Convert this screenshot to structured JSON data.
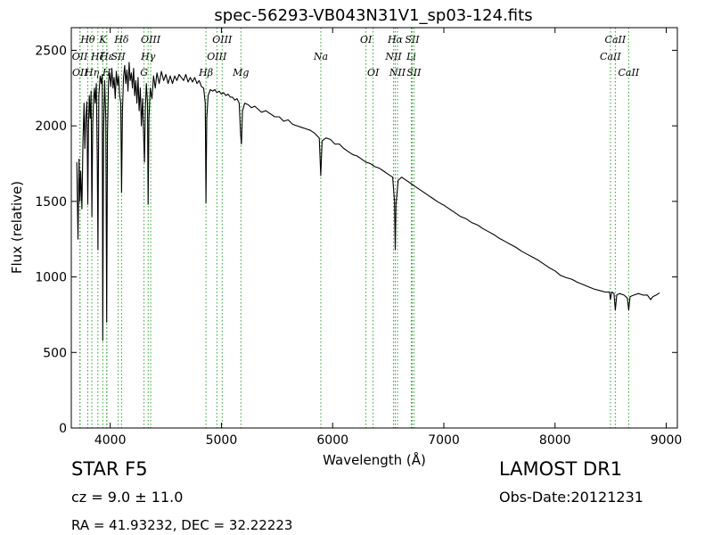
{
  "chart_data": {
    "type": "line",
    "title": "spec-56293-VB043N31V1_sp03-124.fits",
    "xlabel": "Wavelength (Å)",
    "ylabel": "Flux (relative)",
    "xlim": [
      3650,
      9100
    ],
    "ylim": [
      0,
      2650
    ],
    "xticks": [
      4000,
      5000,
      6000,
      7000,
      8000,
      9000
    ],
    "yticks": [
      0,
      500,
      1000,
      1500,
      2000,
      2500
    ],
    "grid": false,
    "line_color": "#000000",
    "marker_color": "#2ca02c",
    "spectrum": {
      "name": "",
      "points": [
        [
          3700,
          1760
        ],
        [
          3710,
          1250
        ],
        [
          3720,
          1780
        ],
        [
          3728,
          1500
        ],
        [
          3735,
          1700
        ],
        [
          3745,
          1450
        ],
        [
          3755,
          1900
        ],
        [
          3765,
          2150
        ],
        [
          3772,
          1850
        ],
        [
          3780,
          2050
        ],
        [
          3790,
          2160
        ],
        [
          3798,
          1480
        ],
        [
          3805,
          2000
        ],
        [
          3812,
          2200
        ],
        [
          3820,
          2050
        ],
        [
          3828,
          2230
        ],
        [
          3835,
          1400
        ],
        [
          3842,
          2000
        ],
        [
          3850,
          2180
        ],
        [
          3858,
          2250
        ],
        [
          3865,
          2150
        ],
        [
          3875,
          2280
        ],
        [
          3883,
          1800
        ],
        [
          3890,
          1180
        ],
        [
          3898,
          2200
        ],
        [
          3910,
          2330
        ],
        [
          3920,
          2280
        ],
        [
          3928,
          2340
        ],
        [
          3933,
          580
        ],
        [
          3940,
          1950
        ],
        [
          3950,
          2300
        ],
        [
          3960,
          2050
        ],
        [
          3968,
          700
        ],
        [
          3975,
          1950
        ],
        [
          3985,
          2300
        ],
        [
          3995,
          2350
        ],
        [
          4005,
          2260
        ],
        [
          4015,
          2380
        ],
        [
          4025,
          2250
        ],
        [
          4035,
          2320
        ],
        [
          4045,
          2180
        ],
        [
          4055,
          2360
        ],
        [
          4065,
          2270
        ],
        [
          4075,
          2330
        ],
        [
          4085,
          2200
        ],
        [
          4095,
          2150
        ],
        [
          4102,
          1560
        ],
        [
          4110,
          2100
        ],
        [
          4120,
          2320
        ],
        [
          4130,
          2400
        ],
        [
          4140,
          2280
        ],
        [
          4150,
          2370
        ],
        [
          4160,
          2230
        ],
        [
          4170,
          2420
        ],
        [
          4180,
          2300
        ],
        [
          4190,
          2350
        ],
        [
          4200,
          2250
        ],
        [
          4210,
          2380
        ],
        [
          4220,
          2200
        ],
        [
          4230,
          2300
        ],
        [
          4240,
          2150
        ],
        [
          4250,
          2320
        ],
        [
          4260,
          2100
        ],
        [
          4270,
          2250
        ],
        [
          4280,
          2000
        ],
        [
          4290,
          2180
        ],
        [
          4300,
          1950
        ],
        [
          4308,
          1760
        ],
        [
          4315,
          2100
        ],
        [
          4325,
          2280
        ],
        [
          4335,
          2150
        ],
        [
          4341,
          1480
        ],
        [
          4348,
          2050
        ],
        [
          4360,
          2250
        ],
        [
          4375,
          2180
        ],
        [
          4390,
          2330
        ],
        [
          4405,
          2250
        ],
        [
          4420,
          2350
        ],
        [
          4440,
          2280
        ],
        [
          4460,
          2360
        ],
        [
          4480,
          2300
        ],
        [
          4500,
          2340
        ],
        [
          4520,
          2280
        ],
        [
          4540,
          2330
        ],
        [
          4560,
          2280
        ],
        [
          4580,
          2330
        ],
        [
          4600,
          2300
        ],
        [
          4620,
          2340
        ],
        [
          4640,
          2320
        ],
        [
          4660,
          2300
        ],
        [
          4680,
          2340
        ],
        [
          4700,
          2290
        ],
        [
          4720,
          2320
        ],
        [
          4740,
          2290
        ],
        [
          4760,
          2320
        ],
        [
          4780,
          2280
        ],
        [
          4800,
          2300
        ],
        [
          4820,
          2260
        ],
        [
          4840,
          2250
        ],
        [
          4855,
          2150
        ],
        [
          4861,
          1490
        ],
        [
          4868,
          2050
        ],
        [
          4880,
          2200
        ],
        [
          4900,
          2240
        ],
        [
          4920,
          2230
        ],
        [
          4940,
          2240
        ],
        [
          4960,
          2220
        ],
        [
          4980,
          2230
        ],
        [
          5000,
          2210
        ],
        [
          5020,
          2220
        ],
        [
          5040,
          2200
        ],
        [
          5060,
          2210
        ],
        [
          5080,
          2190
        ],
        [
          5100,
          2190
        ],
        [
          5120,
          2170
        ],
        [
          5140,
          2180
        ],
        [
          5160,
          2150
        ],
        [
          5172,
          1950
        ],
        [
          5180,
          1880
        ],
        [
          5190,
          2100
        ],
        [
          5210,
          2150
        ],
        [
          5240,
          2140
        ],
        [
          5270,
          2120
        ],
        [
          5300,
          2130
        ],
        [
          5330,
          2110
        ],
        [
          5360,
          2090
        ],
        [
          5400,
          2100
        ],
        [
          5440,
          2080
        ],
        [
          5480,
          2060
        ],
        [
          5520,
          2060
        ],
        [
          5560,
          2030
        ],
        [
          5600,
          2040
        ],
        [
          5640,
          2010
        ],
        [
          5680,
          2000
        ],
        [
          5720,
          1990
        ],
        [
          5760,
          1980
        ],
        [
          5800,
          1970
        ],
        [
          5840,
          1950
        ],
        [
          5880,
          1920
        ],
        [
          5893,
          1670
        ],
        [
          5905,
          1900
        ],
        [
          5940,
          1920
        ],
        [
          5980,
          1910
        ],
        [
          6020,
          1880
        ],
        [
          6060,
          1880
        ],
        [
          6100,
          1850
        ],
        [
          6140,
          1830
        ],
        [
          6180,
          1810
        ],
        [
          6220,
          1800
        ],
        [
          6260,
          1780
        ],
        [
          6300,
          1760
        ],
        [
          6340,
          1750
        ],
        [
          6380,
          1730
        ],
        [
          6420,
          1720
        ],
        [
          6460,
          1700
        ],
        [
          6500,
          1680
        ],
        [
          6540,
          1660
        ],
        [
          6556,
          1500
        ],
        [
          6563,
          1180
        ],
        [
          6570,
          1480
        ],
        [
          6590,
          1640
        ],
        [
          6620,
          1660
        ],
        [
          6660,
          1640
        ],
        [
          6700,
          1620
        ],
        [
          6740,
          1600
        ],
        [
          6780,
          1580
        ],
        [
          6820,
          1560
        ],
        [
          6860,
          1540
        ],
        [
          6900,
          1520
        ],
        [
          6950,
          1495
        ],
        [
          7000,
          1475
        ],
        [
          7050,
          1450
        ],
        [
          7100,
          1425
        ],
        [
          7150,
          1400
        ],
        [
          7200,
          1385
        ],
        [
          7250,
          1360
        ],
        [
          7300,
          1345
        ],
        [
          7350,
          1320
        ],
        [
          7400,
          1300
        ],
        [
          7450,
          1280
        ],
        [
          7500,
          1255
        ],
        [
          7550,
          1235
        ],
        [
          7600,
          1215
        ],
        [
          7650,
          1195
        ],
        [
          7700,
          1170
        ],
        [
          7750,
          1150
        ],
        [
          7800,
          1130
        ],
        [
          7850,
          1110
        ],
        [
          7900,
          1085
        ],
        [
          7950,
          1060
        ],
        [
          8000,
          1040
        ],
        [
          8050,
          1010
        ],
        [
          8100,
          995
        ],
        [
          8150,
          985
        ],
        [
          8200,
          965
        ],
        [
          8250,
          950
        ],
        [
          8300,
          935
        ],
        [
          8350,
          920
        ],
        [
          8400,
          910
        ],
        [
          8450,
          900
        ],
        [
          8490,
          900
        ],
        [
          8498,
          850
        ],
        [
          8510,
          900
        ],
        [
          8530,
          890
        ],
        [
          8542,
          780
        ],
        [
          8555,
          880
        ],
        [
          8580,
          890
        ],
        [
          8620,
          880
        ],
        [
          8650,
          860
        ],
        [
          8662,
          780
        ],
        [
          8675,
          870
        ],
        [
          8710,
          880
        ],
        [
          8750,
          890
        ],
        [
          8790,
          880
        ],
        [
          8830,
          880
        ],
        [
          8860,
          850
        ],
        [
          8880,
          870
        ],
        [
          8910,
          880
        ],
        [
          8940,
          895
        ]
      ]
    },
    "line_markers": [
      {
        "wavelength": 3727,
        "label": "OII",
        "row": 1
      },
      {
        "wavelength": 3729,
        "label": "OII",
        "row": 2
      },
      {
        "wavelength": 3798,
        "label": "Hθ",
        "row": 0
      },
      {
        "wavelength": 3835,
        "label": "Hη",
        "row": 2
      },
      {
        "wavelength": 3889,
        "label": "Hζ",
        "row": 1
      },
      {
        "wavelength": 3933,
        "label": "K",
        "row": 0
      },
      {
        "wavelength": 3968,
        "label": "H",
        "row": 2
      },
      {
        "wavelength": 3970,
        "label": "Hε",
        "row": 1
      },
      {
        "wavelength": 4072,
        "label": "SII",
        "row": 1
      },
      {
        "wavelength": 4102,
        "label": "Hδ",
        "row": 0
      },
      {
        "wavelength": 4304,
        "label": "G",
        "row": 2
      },
      {
        "wavelength": 4341,
        "label": "Hγ",
        "row": 1
      },
      {
        "wavelength": 4364,
        "label": "OIII",
        "row": 0
      },
      {
        "wavelength": 4861,
        "label": "Hβ",
        "row": 2
      },
      {
        "wavelength": 4959,
        "label": "OIII",
        "row": 1
      },
      {
        "wavelength": 5007,
        "label": "OIII",
        "row": 0
      },
      {
        "wavelength": 5175,
        "label": "Mg",
        "row": 2
      },
      {
        "wavelength": 5894,
        "label": "Na",
        "row": 1
      },
      {
        "wavelength": 6300,
        "label": "OI",
        "row": 0
      },
      {
        "wavelength": 6364,
        "label": "OI",
        "row": 2
      },
      {
        "wavelength": 6548,
        "label": "NII",
        "row": 1
      },
      {
        "wavelength": 6563,
        "label": "Hα",
        "row": 0
      },
      {
        "wavelength": 6583,
        "label": "NII",
        "row": 2
      },
      {
        "wavelength": 6708,
        "label": "Li",
        "row": 1
      },
      {
        "wavelength": 6716,
        "label": "SII",
        "row": 0
      },
      {
        "wavelength": 6731,
        "label": "SII",
        "row": 2
      },
      {
        "wavelength": 8498,
        "label": "CaII",
        "row": 1
      },
      {
        "wavelength": 8542,
        "label": "CaII",
        "row": 0
      },
      {
        "wavelength": 8662,
        "label": "CaII",
        "row": 2
      }
    ]
  },
  "info": {
    "object_class": "STAR   F5",
    "survey": "LAMOST DR1",
    "redshift_text": "cz = 9.0 ± 11.0",
    "obs_date": "Obs-Date:20121231",
    "ra_dec": "RA = 41.93232, DEC = 32.22223"
  }
}
